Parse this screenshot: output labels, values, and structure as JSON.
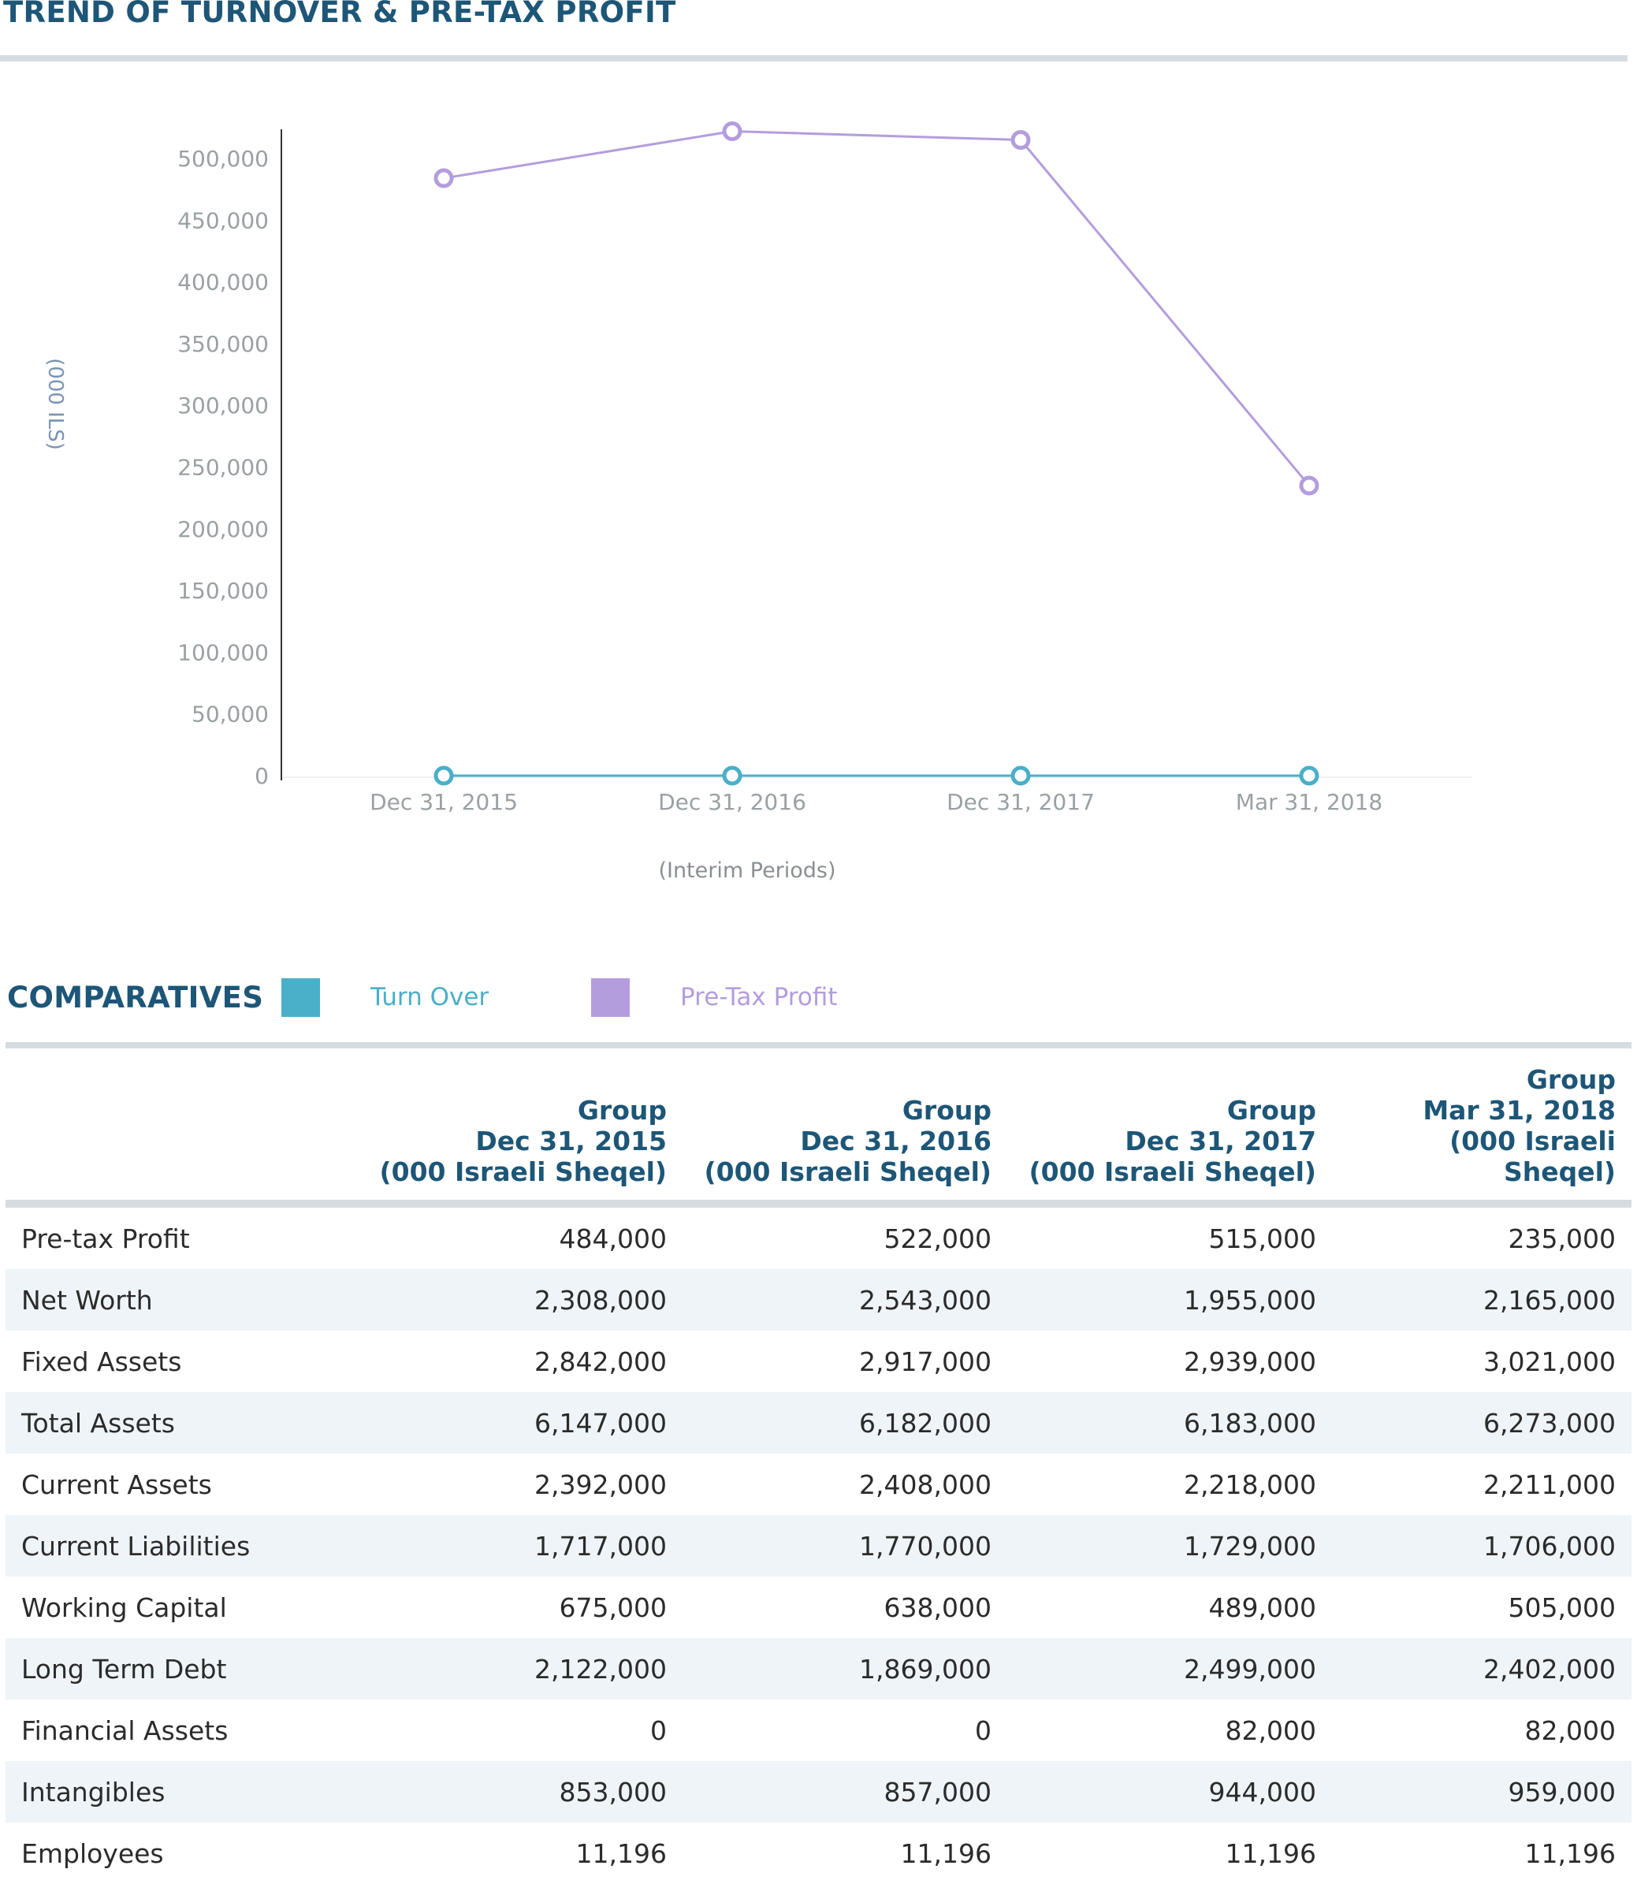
{
  "trend_section": {
    "title": "TREND OF TURNOVER & PRE-TAX PROFIT"
  },
  "comparatives_section": {
    "title": "COMPARATIVES"
  },
  "chart_data": {
    "type": "line",
    "title": "",
    "xlabel": "(Interim Periods)",
    "ylabel": "(000 ILS)",
    "categories": [
      "Dec 31, 2015",
      "Dec 31, 2016",
      "Dec 31, 2017",
      "Mar 31, 2018"
    ],
    "ylim": [
      0,
      500000
    ],
    "yticks": [
      "0",
      "50,000",
      "100,000",
      "150,000",
      "200,000",
      "250,000",
      "300,000",
      "350,000",
      "400,000",
      "450,000",
      "500,000"
    ],
    "grid": false,
    "legend_position": "bottom-left",
    "series": [
      {
        "name": "Turn Over",
        "color": "#4aafc8",
        "values": [
          0,
          0,
          0,
          0
        ]
      },
      {
        "name": "Pre-Tax Profit",
        "color": "#b39ddd",
        "values": [
          484000,
          522000,
          515000,
          235000
        ]
      }
    ]
  },
  "table": {
    "columns": [
      {
        "line1": "Group",
        "line2": "Dec 31, 2015",
        "line3": "(000 Israeli Sheqel)"
      },
      {
        "line1": "Group",
        "line2": "Dec 31, 2016",
        "line3": "(000 Israeli Sheqel)"
      },
      {
        "line1": "Group",
        "line2": "Dec 31, 2017",
        "line3": "(000 Israeli Sheqel)"
      },
      {
        "line1": "Group",
        "line2": "Mar 31, 2018",
        "line3": "(000 Israeli Sheqel)"
      }
    ],
    "rows": [
      {
        "label": "Pre-tax Profit",
        "values": [
          "484,000",
          "522,000",
          "515,000",
          "235,000"
        ]
      },
      {
        "label": "Net Worth",
        "values": [
          "2,308,000",
          "2,543,000",
          "1,955,000",
          "2,165,000"
        ]
      },
      {
        "label": "Fixed Assets",
        "values": [
          "2,842,000",
          "2,917,000",
          "2,939,000",
          "3,021,000"
        ]
      },
      {
        "label": "Total Assets",
        "values": [
          "6,147,000",
          "6,182,000",
          "6,183,000",
          "6,273,000"
        ]
      },
      {
        "label": "Current Assets",
        "values": [
          "2,392,000",
          "2,408,000",
          "2,218,000",
          "2,211,000"
        ]
      },
      {
        "label": "Current Liabilities",
        "values": [
          "1,717,000",
          "1,770,000",
          "1,729,000",
          "1,706,000"
        ]
      },
      {
        "label": "Working Capital",
        "values": [
          "675,000",
          "638,000",
          "489,000",
          "505,000"
        ]
      },
      {
        "label": "Long Term Debt",
        "values": [
          "2,122,000",
          "1,869,000",
          "2,499,000",
          "2,402,000"
        ]
      },
      {
        "label": "Financial Assets",
        "values": [
          "0",
          "0",
          "82,000",
          "82,000"
        ]
      },
      {
        "label": "Intangibles",
        "values": [
          "853,000",
          "857,000",
          "944,000",
          "959,000"
        ]
      },
      {
        "label": "Employees",
        "values": [
          "11,196",
          "11,196",
          "11,196",
          "11,196"
        ]
      }
    ]
  }
}
